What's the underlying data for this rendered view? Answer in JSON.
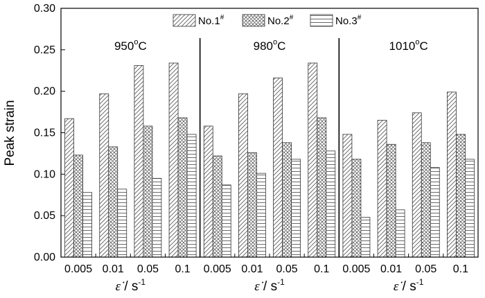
{
  "chart_data": {
    "type": "bar",
    "ylabel": "Peak strain",
    "ylim": [
      0,
      0.3
    ],
    "ytick_step": 0.05,
    "y_ticks": [
      "0.00",
      "0.05",
      "0.10",
      "0.15",
      "0.20",
      "0.25",
      "0.30"
    ],
    "xlabel_symbol": "ε̇",
    "xlabel_unit": " / s",
    "xlabel_exp": "-1",
    "categories": [
      "0.005",
      "0.01",
      "0.05",
      "0.1"
    ],
    "groups": [
      {
        "label": "950",
        "unit_sup": "o",
        "unit": "C",
        "series": [
          {
            "name": "No.1",
            "values": [
              0.167,
              0.197,
              0.231,
              0.234
            ]
          },
          {
            "name": "No.2",
            "values": [
              0.123,
              0.133,
              0.158,
              0.168
            ]
          },
          {
            "name": "No.3",
            "values": [
              0.078,
              0.082,
              0.095,
              0.148
            ]
          }
        ]
      },
      {
        "label": "980",
        "unit_sup": "o",
        "unit": "C",
        "series": [
          {
            "name": "No.1",
            "values": [
              0.158,
              0.197,
              0.216,
              0.234
            ]
          },
          {
            "name": "No.2",
            "values": [
              0.122,
              0.126,
              0.138,
              0.168
            ]
          },
          {
            "name": "No.3",
            "values": [
              0.087,
              0.101,
              0.118,
              0.128
            ]
          }
        ]
      },
      {
        "label": "1010",
        "unit_sup": "o",
        "unit": "C",
        "series": [
          {
            "name": "No.1",
            "values": [
              0.148,
              0.165,
              0.174,
              0.199
            ]
          },
          {
            "name": "No.2",
            "values": [
              0.118,
              0.136,
              0.138,
              0.148
            ]
          },
          {
            "name": "No.3",
            "values": [
              0.048,
              0.057,
              0.108,
              0.118
            ]
          }
        ]
      }
    ],
    "legend": [
      {
        "name": "No.1",
        "sup": "#",
        "pattern": "diagonal-hatch"
      },
      {
        "name": "No.2",
        "sup": "#",
        "pattern": "crosshatch"
      },
      {
        "name": "No.3",
        "sup": "#",
        "pattern": "horizontal-lines"
      }
    ],
    "legend_position": "top-center",
    "grid": false
  }
}
